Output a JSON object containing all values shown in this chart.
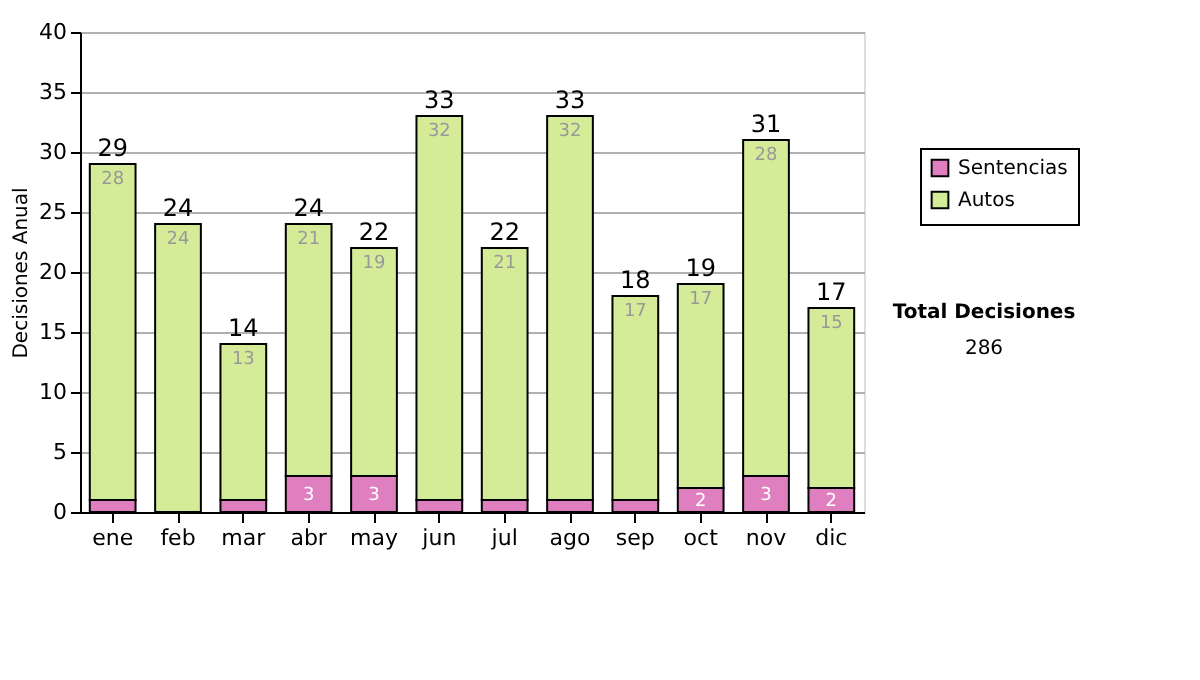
{
  "chart_data": {
    "type": "bar",
    "stacked": true,
    "ylabel": "Decisiones Anual",
    "categories": [
      "ene",
      "feb",
      "mar",
      "abr",
      "may",
      "jun",
      "jul",
      "ago",
      "sep",
      "oct",
      "nov",
      "dic"
    ],
    "series": [
      {
        "name": "Sentencias",
        "color": "#e07fc0",
        "values": [
          1,
          0,
          1,
          3,
          3,
          1,
          1,
          1,
          1,
          2,
          3,
          2
        ],
        "value_labels": [
          null,
          null,
          null,
          "3",
          "3",
          null,
          null,
          null,
          null,
          "2",
          "3",
          "2"
        ]
      },
      {
        "name": "Autos",
        "color": "#d4ec98",
        "values": [
          28,
          24,
          13,
          21,
          19,
          32,
          21,
          32,
          17,
          17,
          28,
          15
        ],
        "value_labels": [
          "28",
          "24",
          "13",
          "21",
          "19",
          "32",
          "21",
          "32",
          "17",
          "17",
          "28",
          "15"
        ]
      }
    ],
    "totals": [
      "29",
      "24",
      "14",
      "24",
      "22",
      "33",
      "22",
      "33",
      "18",
      "19",
      "31",
      "17"
    ],
    "ylim": [
      0,
      40
    ],
    "yticks": [
      0,
      5,
      10,
      15,
      20,
      25,
      30,
      35,
      40
    ],
    "grid": "y",
    "legend": "right",
    "annotations": [
      "Total Decisiones",
      "286"
    ]
  }
}
